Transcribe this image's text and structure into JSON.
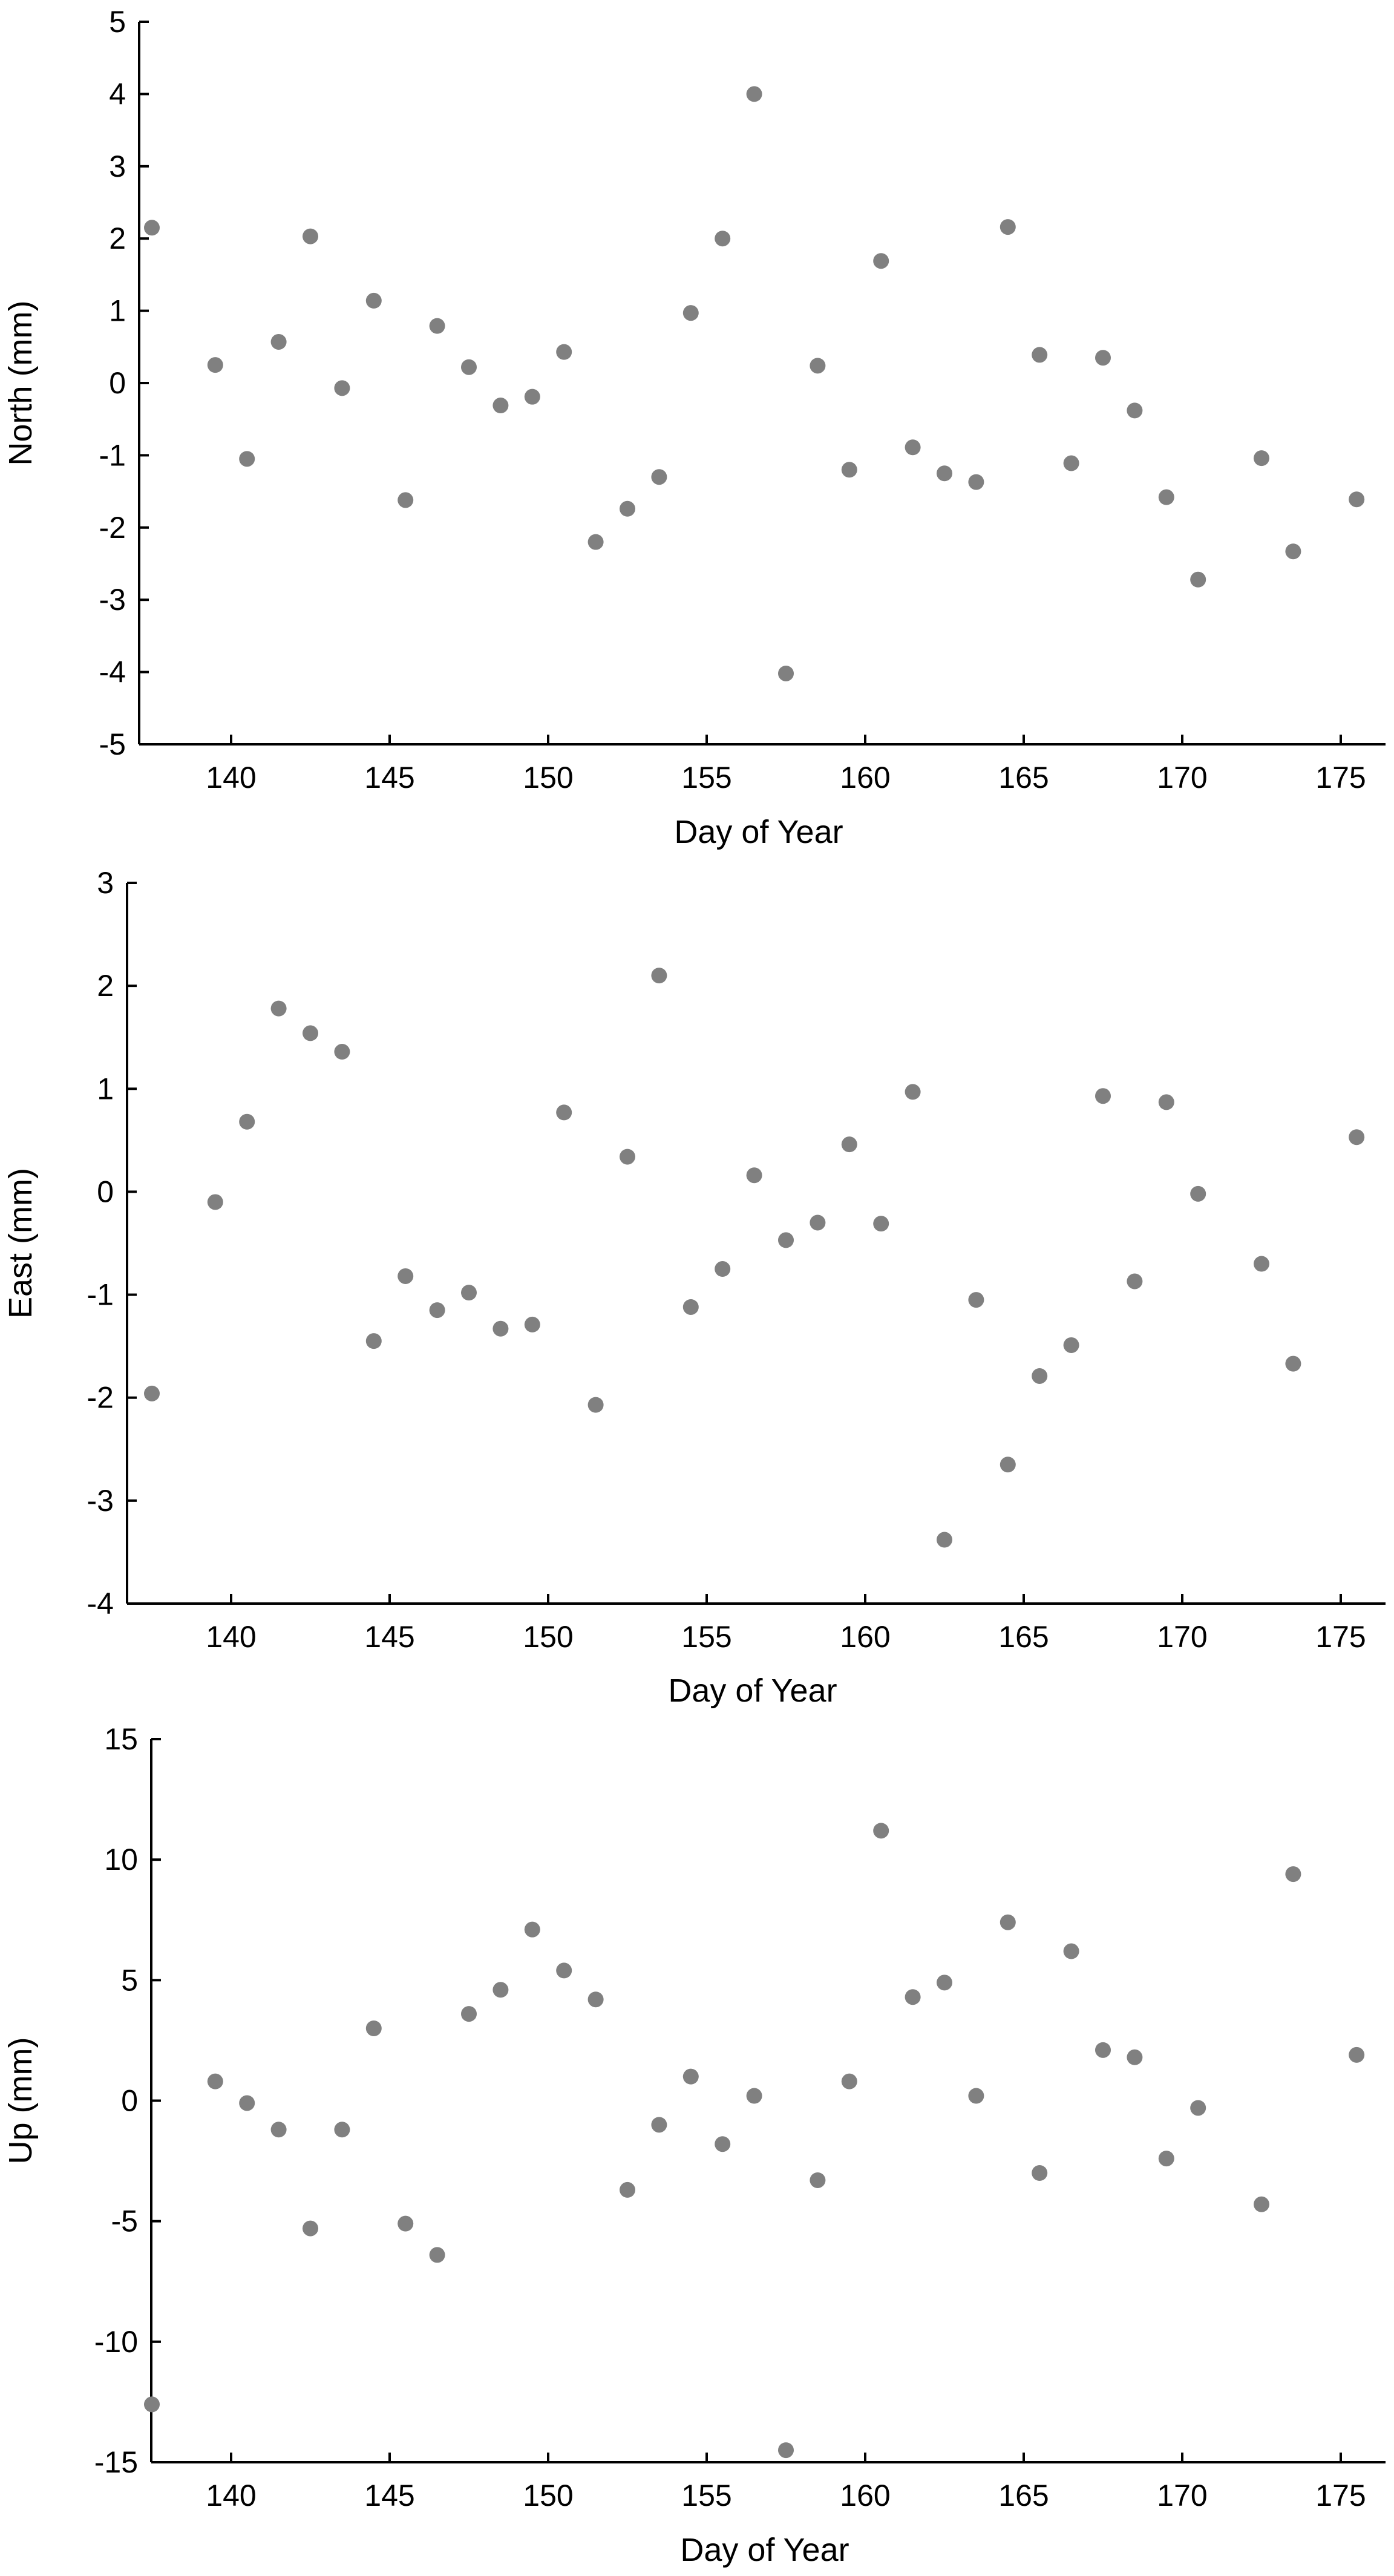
{
  "chart_data": [
    {
      "type": "scatter",
      "xlabel": "Day of Year",
      "ylabel": "North (mm)",
      "xlim": [
        137,
        177
      ],
      "ylim": [
        -5,
        5
      ],
      "xticks": [
        140,
        145,
        150,
        155,
        160,
        165,
        170,
        175
      ],
      "yticks": [
        -5,
        -4,
        -3,
        -2,
        -1,
        0,
        1,
        2,
        3,
        4,
        5
      ],
      "marker_color": "#808080",
      "grid": false,
      "points": [
        {
          "x": 137.5,
          "y": 2.15
        },
        {
          "x": 139.5,
          "y": 0.25
        },
        {
          "x": 140.5,
          "y": -1.05
        },
        {
          "x": 141.5,
          "y": 0.57
        },
        {
          "x": 142.5,
          "y": 2.03
        },
        {
          "x": 143.5,
          "y": -0.07
        },
        {
          "x": 144.5,
          "y": 1.14
        },
        {
          "x": 145.5,
          "y": -1.62
        },
        {
          "x": 146.5,
          "y": 0.79
        },
        {
          "x": 147.5,
          "y": 0.22
        },
        {
          "x": 148.5,
          "y": -0.31
        },
        {
          "x": 149.5,
          "y": -0.19
        },
        {
          "x": 150.5,
          "y": 0.43
        },
        {
          "x": 151.5,
          "y": -2.2
        },
        {
          "x": 152.5,
          "y": -1.74
        },
        {
          "x": 153.5,
          "y": -1.3
        },
        {
          "x": 154.5,
          "y": 0.97
        },
        {
          "x": 155.5,
          "y": 2.0
        },
        {
          "x": 156.5,
          "y": 4.0
        },
        {
          "x": 157.5,
          "y": -4.02
        },
        {
          "x": 158.5,
          "y": 0.24
        },
        {
          "x": 159.5,
          "y": -1.2
        },
        {
          "x": 160.5,
          "y": 1.69
        },
        {
          "x": 161.5,
          "y": -0.89
        },
        {
          "x": 162.5,
          "y": -1.25
        },
        {
          "x": 163.5,
          "y": -1.37
        },
        {
          "x": 164.5,
          "y": 2.16
        },
        {
          "x": 165.5,
          "y": 0.39
        },
        {
          "x": 166.5,
          "y": -1.11
        },
        {
          "x": 167.5,
          "y": 0.35
        },
        {
          "x": 168.5,
          "y": -0.38
        },
        {
          "x": 169.5,
          "y": -1.58
        },
        {
          "x": 170.5,
          "y": -2.72
        },
        {
          "x": 172.5,
          "y": -1.04
        },
        {
          "x": 173.5,
          "y": -2.33
        },
        {
          "x": 175.5,
          "y": -1.61
        }
      ]
    },
    {
      "type": "scatter",
      "xlabel": "Day of Year",
      "ylabel": "East (mm)",
      "xlim": [
        137,
        177
      ],
      "ylim": [
        -4,
        3
      ],
      "xticks": [
        140,
        145,
        150,
        155,
        160,
        165,
        170,
        175
      ],
      "yticks": [
        -4,
        -3,
        -2,
        -1,
        0,
        1,
        2,
        3
      ],
      "marker_color": "#808080",
      "grid": false,
      "points": [
        {
          "x": 137.5,
          "y": -1.96
        },
        {
          "x": 139.5,
          "y": -0.1
        },
        {
          "x": 140.5,
          "y": 0.68
        },
        {
          "x": 141.5,
          "y": 1.78
        },
        {
          "x": 142.5,
          "y": 1.54
        },
        {
          "x": 143.5,
          "y": 1.36
        },
        {
          "x": 144.5,
          "y": -1.45
        },
        {
          "x": 145.5,
          "y": -0.82
        },
        {
          "x": 146.5,
          "y": -1.15
        },
        {
          "x": 147.5,
          "y": -0.98
        },
        {
          "x": 148.5,
          "y": -1.33
        },
        {
          "x": 149.5,
          "y": -1.29
        },
        {
          "x": 150.5,
          "y": 0.77
        },
        {
          "x": 151.5,
          "y": -2.07
        },
        {
          "x": 152.5,
          "y": 0.34
        },
        {
          "x": 153.5,
          "y": 2.1
        },
        {
          "x": 154.5,
          "y": -1.12
        },
        {
          "x": 155.5,
          "y": -0.75
        },
        {
          "x": 156.5,
          "y": 0.16
        },
        {
          "x": 157.5,
          "y": -0.47
        },
        {
          "x": 158.5,
          "y": -0.3
        },
        {
          "x": 159.5,
          "y": 0.46
        },
        {
          "x": 160.5,
          "y": -0.31
        },
        {
          "x": 161.5,
          "y": 0.97
        },
        {
          "x": 162.5,
          "y": -3.38
        },
        {
          "x": 163.5,
          "y": -1.05
        },
        {
          "x": 164.5,
          "y": -2.65
        },
        {
          "x": 165.5,
          "y": -1.79
        },
        {
          "x": 166.5,
          "y": -1.49
        },
        {
          "x": 167.5,
          "y": 0.93
        },
        {
          "x": 168.5,
          "y": -0.87
        },
        {
          "x": 169.5,
          "y": 0.87
        },
        {
          "x": 170.5,
          "y": -0.02
        },
        {
          "x": 172.5,
          "y": -0.7
        },
        {
          "x": 173.5,
          "y": -1.67
        },
        {
          "x": 175.5,
          "y": 0.53
        }
      ]
    },
    {
      "type": "scatter",
      "xlabel": "Day of Year",
      "ylabel": "Up (mm)",
      "xlim": [
        137,
        177
      ],
      "ylim": [
        -15,
        15
      ],
      "xticks": [
        140,
        145,
        150,
        155,
        160,
        165,
        170,
        175
      ],
      "yticks": [
        -15,
        -10,
        -5,
        0,
        5,
        10,
        15
      ],
      "marker_color": "#808080",
      "grid": false,
      "points": [
        {
          "x": 137.5,
          "y": -12.6
        },
        {
          "x": 139.5,
          "y": 0.8
        },
        {
          "x": 140.5,
          "y": -0.1
        },
        {
          "x": 141.5,
          "y": -1.2
        },
        {
          "x": 142.5,
          "y": -5.3
        },
        {
          "x": 143.5,
          "y": -1.2
        },
        {
          "x": 144.5,
          "y": 3.0
        },
        {
          "x": 145.5,
          "y": -5.1
        },
        {
          "x": 146.5,
          "y": -6.4
        },
        {
          "x": 147.5,
          "y": 3.6
        },
        {
          "x": 148.5,
          "y": 4.6
        },
        {
          "x": 149.5,
          "y": 7.1
        },
        {
          "x": 150.5,
          "y": 5.4
        },
        {
          "x": 151.5,
          "y": 4.2
        },
        {
          "x": 152.5,
          "y": -3.7
        },
        {
          "x": 153.5,
          "y": -1.0
        },
        {
          "x": 154.5,
          "y": 1.0
        },
        {
          "x": 155.5,
          "y": -1.8
        },
        {
          "x": 156.5,
          "y": 0.2
        },
        {
          "x": 157.5,
          "y": -14.5
        },
        {
          "x": 158.5,
          "y": -3.3
        },
        {
          "x": 159.5,
          "y": 0.8
        },
        {
          "x": 160.5,
          "y": 11.2
        },
        {
          "x": 161.5,
          "y": 4.3
        },
        {
          "x": 162.5,
          "y": 4.9
        },
        {
          "x": 163.5,
          "y": 0.2
        },
        {
          "x": 164.5,
          "y": 7.4
        },
        {
          "x": 165.5,
          "y": -3.0
        },
        {
          "x": 166.5,
          "y": 6.2
        },
        {
          "x": 167.5,
          "y": 2.1
        },
        {
          "x": 168.5,
          "y": 1.8
        },
        {
          "x": 169.5,
          "y": -2.4
        },
        {
          "x": 170.5,
          "y": -0.3
        },
        {
          "x": 172.5,
          "y": -4.3
        },
        {
          "x": 173.5,
          "y": 9.4
        },
        {
          "x": 175.5,
          "y": 1.9
        }
      ]
    }
  ]
}
